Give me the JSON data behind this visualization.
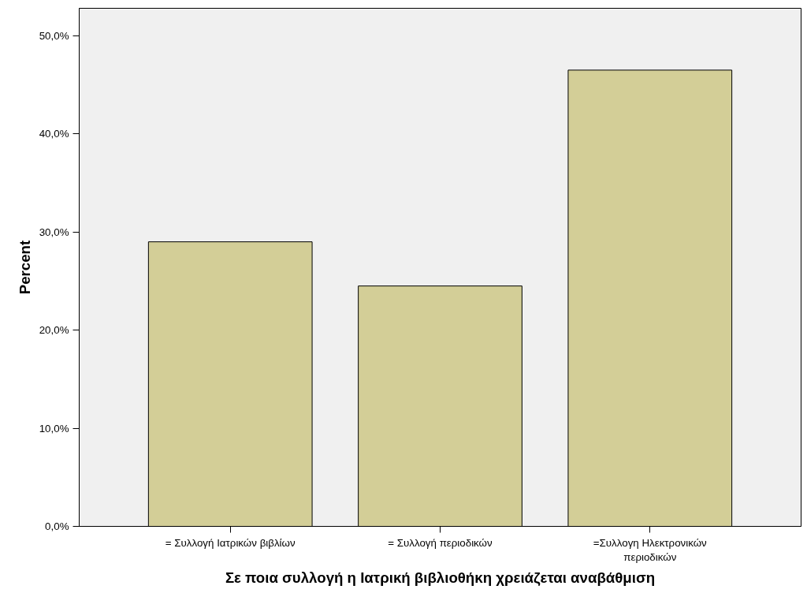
{
  "chart_data": {
    "type": "bar",
    "xlabel": "Σε ποια συλλογή η Ιατρική βιβλιοθήκη χρειάζεται αναβάθμιση",
    "ylabel": "Percent",
    "categories": [
      "= Συλλογή Ιατρικών βιβλίων",
      "= Συλλογή περιοδικών",
      "=Συλλογη Ηλεκτρονικών περιοδικών"
    ],
    "values": [
      29.0,
      24.5,
      46.5
    ],
    "color": "#d3ce97",
    "ylim": [
      0,
      52.8
    ],
    "yticks": [
      {
        "value": 0,
        "label": "0,0%"
      },
      {
        "value": 10,
        "label": "10,0%"
      },
      {
        "value": 20,
        "label": "20,0%"
      },
      {
        "value": 30,
        "label": "30,0%"
      },
      {
        "value": 40,
        "label": "40,0%"
      },
      {
        "value": 50,
        "label": "50,0%"
      }
    ],
    "grid": false
  }
}
